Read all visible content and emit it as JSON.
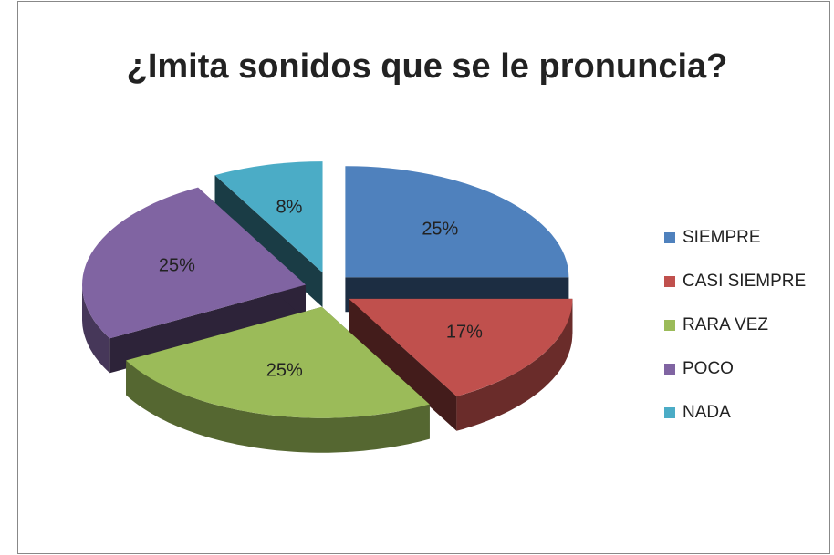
{
  "chart_data": {
    "type": "pie",
    "title": "¿Imita sonidos que se le pronuncia?",
    "categories": [
      "SIEMPRE",
      "CASI SIEMPRE",
      "RARA VEZ",
      "POCO",
      "NADA"
    ],
    "values": [
      25,
      17,
      25,
      25,
      8
    ],
    "value_labels": [
      "25%",
      "17%",
      "25%",
      "25%",
      "8%"
    ],
    "colors": [
      "#4f81bd",
      "#c0504d",
      "#9bbb59",
      "#8064a2",
      "#4bacc6"
    ],
    "legend": "right"
  }
}
